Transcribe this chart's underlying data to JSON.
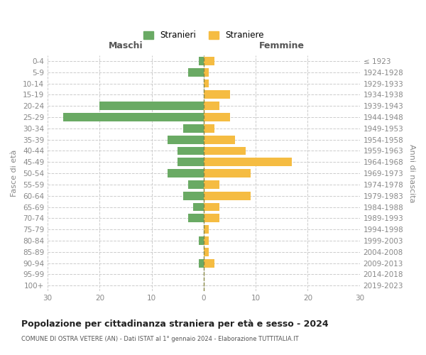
{
  "age_groups": [
    "0-4",
    "5-9",
    "10-14",
    "15-19",
    "20-24",
    "25-29",
    "30-34",
    "35-39",
    "40-44",
    "45-49",
    "50-54",
    "55-59",
    "60-64",
    "65-69",
    "70-74",
    "75-79",
    "80-84",
    "85-89",
    "90-94",
    "95-99",
    "100+"
  ],
  "birth_years": [
    "2019-2023",
    "2014-2018",
    "2009-2013",
    "2004-2008",
    "1999-2003",
    "1994-1998",
    "1989-1993",
    "1984-1988",
    "1979-1983",
    "1974-1978",
    "1969-1973",
    "1964-1968",
    "1959-1963",
    "1954-1958",
    "1949-1953",
    "1944-1948",
    "1939-1943",
    "1934-1938",
    "1929-1933",
    "1924-1928",
    "≤ 1923"
  ],
  "males": [
    1,
    3,
    0,
    0,
    20,
    27,
    4,
    7,
    5,
    5,
    7,
    3,
    4,
    2,
    3,
    0,
    1,
    0,
    1,
    0,
    0
  ],
  "females": [
    2,
    1,
    1,
    5,
    3,
    5,
    2,
    6,
    8,
    17,
    9,
    3,
    9,
    3,
    3,
    1,
    1,
    1,
    2,
    0,
    0
  ],
  "male_color": "#6aaa64",
  "female_color": "#f5bc42",
  "background_color": "#ffffff",
  "grid_color": "#cccccc",
  "title": "Popolazione per cittadinanza straniera per età e sesso - 2024",
  "subtitle": "COMUNE DI OSTRA VETERE (AN) - Dati ISTAT al 1° gennaio 2024 - Elaborazione TUTTITALIA.IT",
  "ylabel_left": "Fasce di età",
  "ylabel_right": "Anni di nascita",
  "xlabel_left": "Maschi",
  "xlabel_right": "Femmine",
  "legend_stranieri": "Stranieri",
  "legend_straniere": "Straniere",
  "xlim": 30,
  "bar_height": 0.75
}
